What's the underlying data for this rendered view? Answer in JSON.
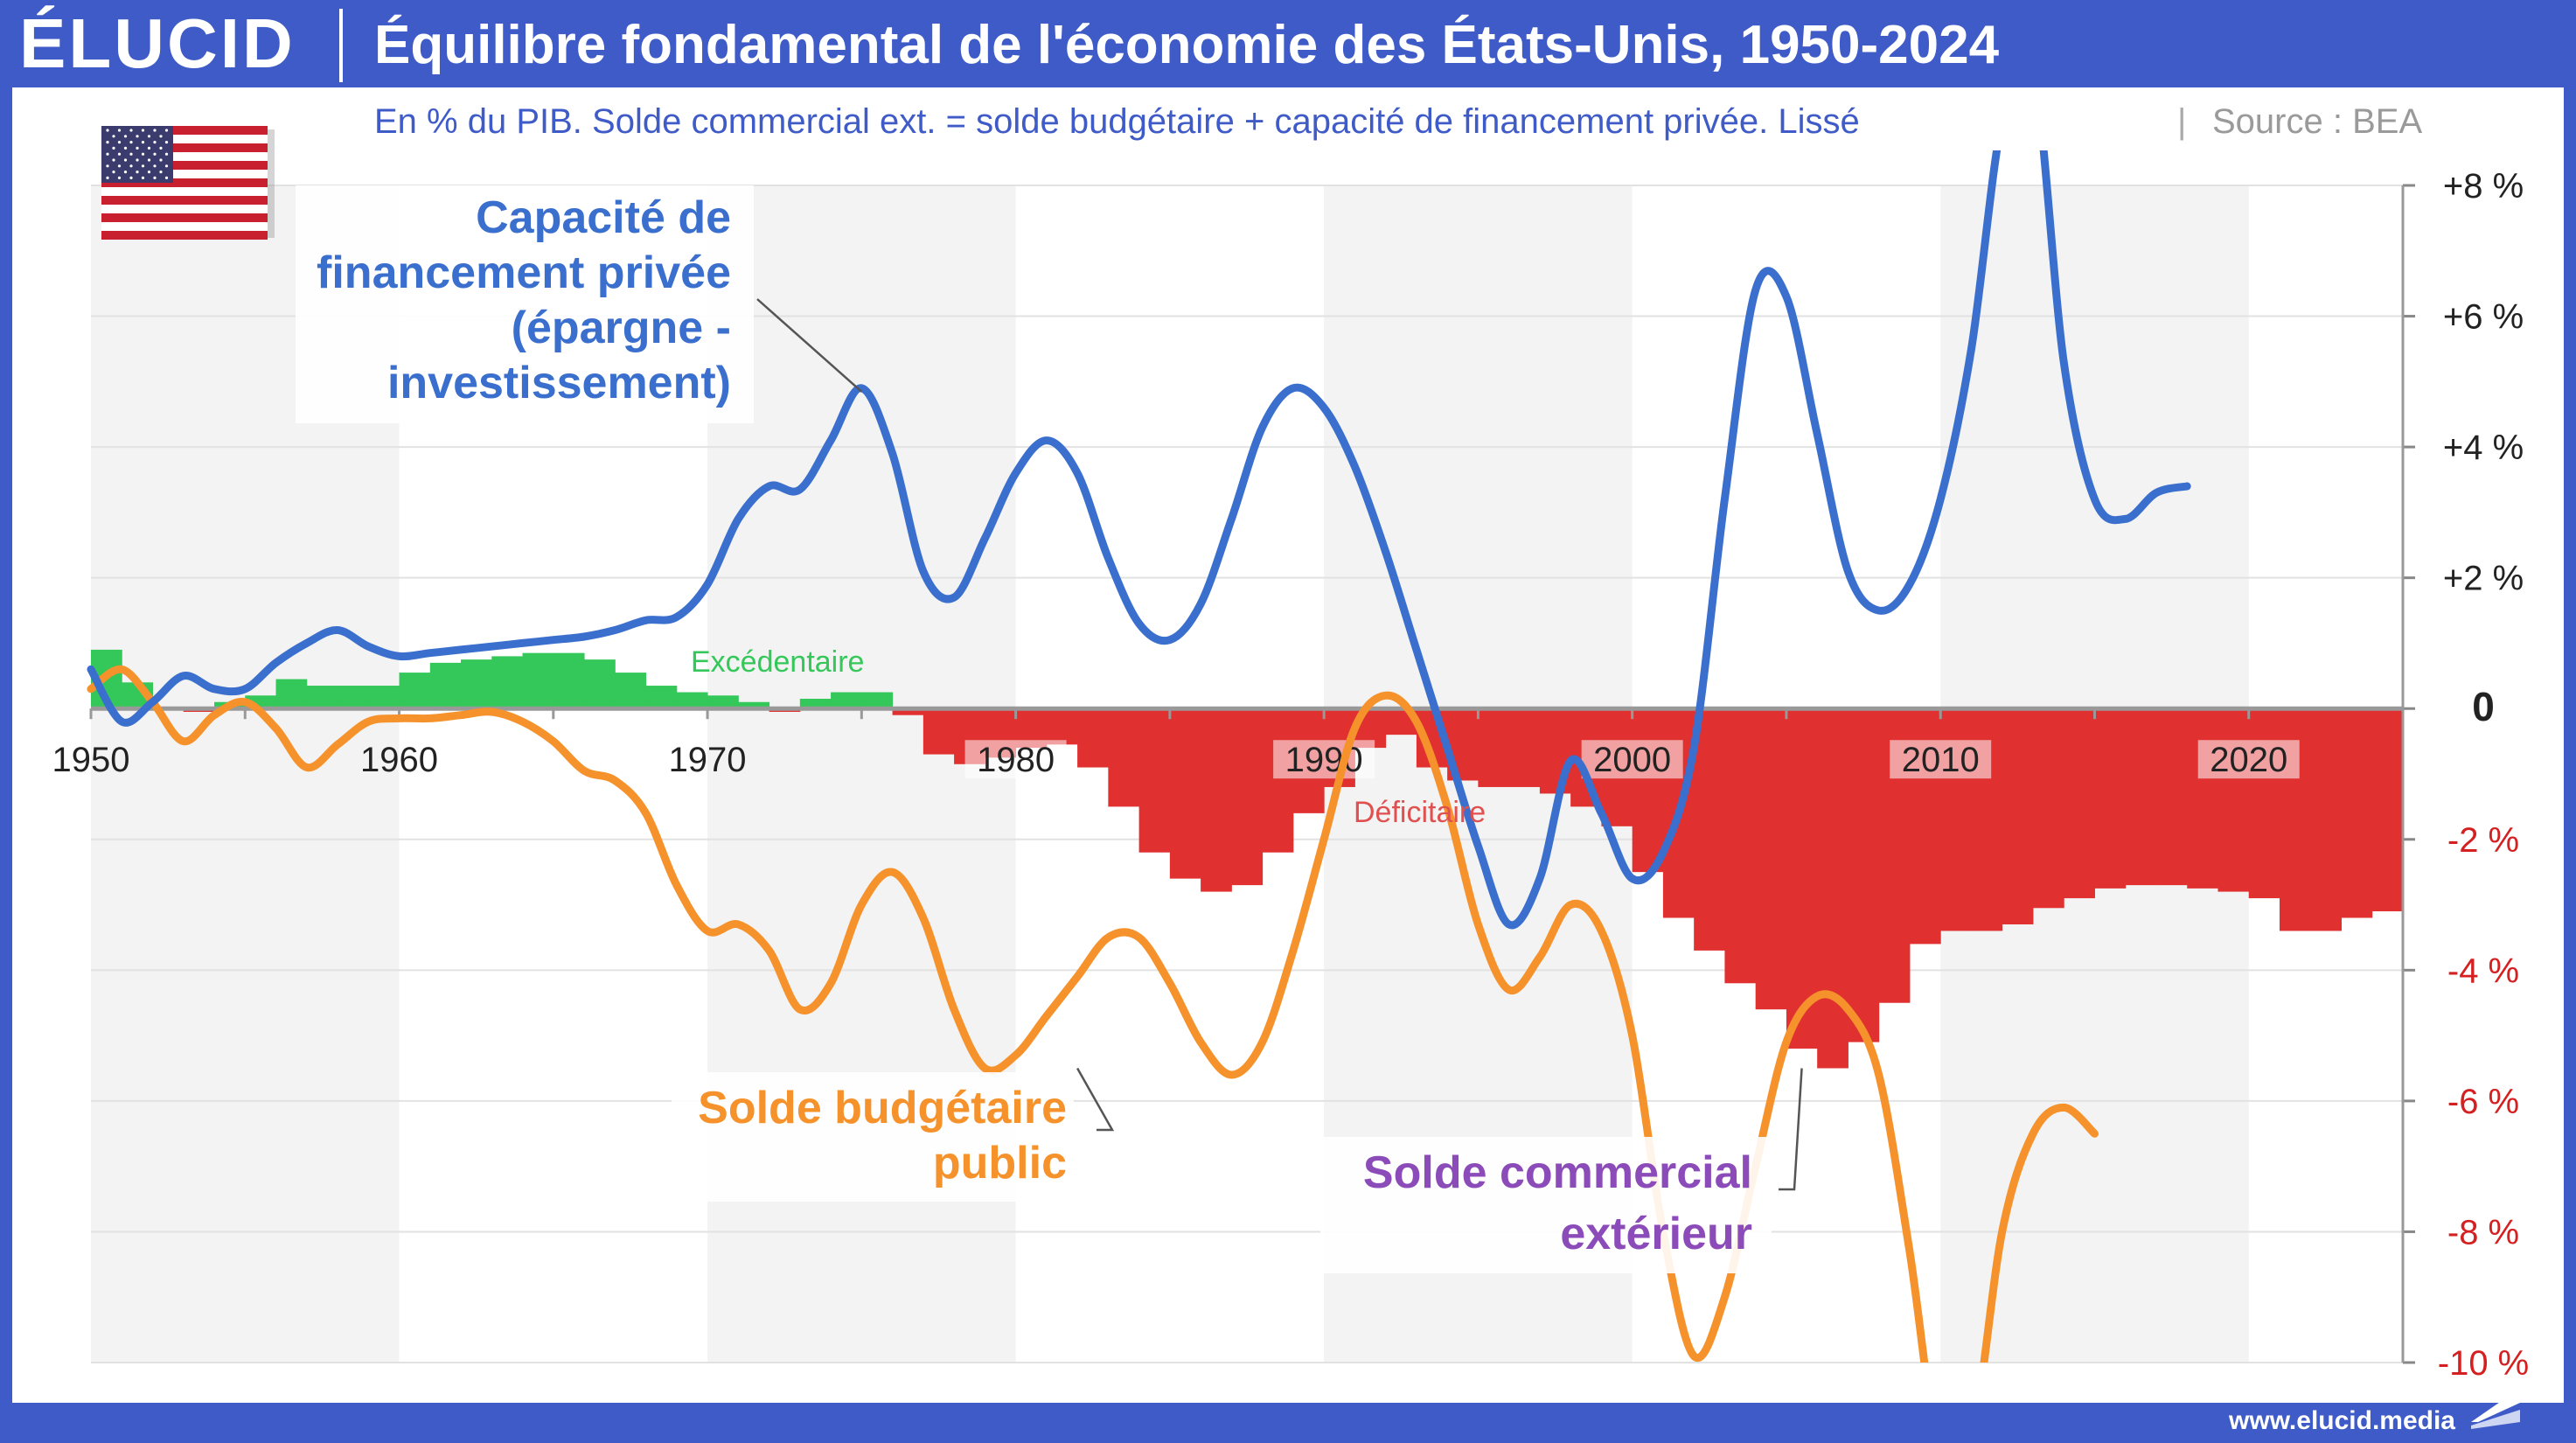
{
  "header": {
    "logo": "ÉLUCID",
    "title": "Équilibre fondamental de l'économie des États-Unis, 1950-2024",
    "subtitle": "En % du PIB. Solde commercial ext. = solde budgétaire + capacité de financement privée. Lissé",
    "source_sep": "|",
    "source": "Source : BEA"
  },
  "footer": {
    "url": "www.elucid.media"
  },
  "colors": {
    "private": "#3a6fce",
    "budget": "#f5922b",
    "trade_label": "#8b4bb8",
    "surplus": "#34c759",
    "deficit": "#e03030",
    "frame": "#3f5bc8"
  },
  "icons": {
    "flag": "us-flag-icon",
    "logo_mark": "elucid-mark-icon"
  },
  "chart_data": {
    "type": "bar+line",
    "title": "Équilibre fondamental de l'économie des États-Unis, 1950-2024",
    "ylim": [
      -10,
      8
    ],
    "y_ticks": [
      {
        "value": 8,
        "label": "+8 %"
      },
      {
        "value": 6,
        "label": "+6 %"
      },
      {
        "value": 4,
        "label": "+4 %"
      },
      {
        "value": 2,
        "label": "+2 %"
      },
      {
        "value": 0,
        "label": "0"
      },
      {
        "value": -2,
        "label": "-2 %"
      },
      {
        "value": -4,
        "label": "-4 %"
      },
      {
        "value": -6,
        "label": "-6 %"
      },
      {
        "value": -8,
        "label": "-8 %"
      },
      {
        "value": -10,
        "label": "-10 %"
      }
    ],
    "x_ticks": [
      {
        "value": 1950,
        "label": "1950"
      },
      {
        "value": 1960,
        "label": "1960"
      },
      {
        "value": 1970,
        "label": "1970"
      },
      {
        "value": 1980,
        "label": "1980"
      },
      {
        "value": 1990,
        "label": "1990"
      },
      {
        "value": 2000,
        "label": "2000"
      },
      {
        "value": 2010,
        "label": "2010"
      },
      {
        "value": 2020,
        "label": "2020"
      }
    ],
    "xlim": [
      1950,
      2025
    ],
    "years": [
      1950,
      1951,
      1952,
      1953,
      1954,
      1955,
      1956,
      1957,
      1958,
      1959,
      1960,
      1961,
      1962,
      1963,
      1964,
      1965,
      1966,
      1967,
      1968,
      1969,
      1970,
      1971,
      1972,
      1973,
      1974,
      1975,
      1976,
      1977,
      1978,
      1979,
      1980,
      1981,
      1982,
      1983,
      1984,
      1985,
      1986,
      1987,
      1988,
      1989,
      1990,
      1991,
      1992,
      1993,
      1994,
      1995,
      1996,
      1997,
      1998,
      1999,
      2000,
      2001,
      2002,
      2003,
      2004,
      2005,
      2006,
      2007,
      2008,
      2009,
      2010,
      2011,
      2012,
      2013,
      2014,
      2015,
      2016,
      2017,
      2018,
      2019,
      2020,
      2021,
      2022,
      2023,
      2024
    ],
    "series": [
      {
        "name": "Solde commercial extérieur",
        "type": "bar",
        "values": [
          0.9,
          0.4,
          0.0,
          -0.05,
          0.1,
          0.2,
          0.45,
          0.35,
          0.35,
          0.35,
          0.55,
          0.7,
          0.75,
          0.8,
          0.85,
          0.85,
          0.75,
          0.55,
          0.35,
          0.25,
          0.2,
          0.1,
          -0.05,
          0.15,
          0.25,
          0.25,
          -0.1,
          -0.7,
          -0.85,
          -0.75,
          -0.6,
          -0.55,
          -0.9,
          -1.5,
          -2.2,
          -2.6,
          -2.8,
          -2.7,
          -2.2,
          -1.6,
          -1.2,
          -0.6,
          -0.4,
          -0.9,
          -1.1,
          -1.2,
          -1.2,
          -1.3,
          -1.5,
          -1.8,
          -2.5,
          -3.2,
          -3.7,
          -4.2,
          -4.6,
          -5.2,
          -5.5,
          -5.1,
          -4.5,
          -3.6,
          -3.4,
          -3.4,
          -3.3,
          -3.05,
          -2.9,
          -2.75,
          -2.7,
          -2.7,
          -2.75,
          -2.8,
          -2.9,
          -3.4,
          -3.4,
          -3.2,
          -3.1
        ]
      },
      {
        "name": "Capacité de financement privée (épargne - investissement)",
        "type": "line",
        "points": [
          [
            1950,
            0.6
          ],
          [
            1951,
            -0.2
          ],
          [
            1952,
            0.1
          ],
          [
            1953,
            0.5
          ],
          [
            1954,
            0.3
          ],
          [
            1955,
            0.3
          ],
          [
            1956,
            0.7
          ],
          [
            1957,
            1.0
          ],
          [
            1958,
            1.2
          ],
          [
            1959,
            0.95
          ],
          [
            1960,
            0.8
          ],
          [
            1961,
            0.85
          ],
          [
            1962,
            0.9
          ],
          [
            1963,
            0.95
          ],
          [
            1964,
            1.0
          ],
          [
            1965,
            1.05
          ],
          [
            1966,
            1.1
          ],
          [
            1967,
            1.2
          ],
          [
            1968,
            1.35
          ],
          [
            1969,
            1.4
          ],
          [
            1970,
            1.9
          ],
          [
            1971,
            2.9
          ],
          [
            1972,
            3.4
          ],
          [
            1973,
            3.35
          ],
          [
            1974,
            4.1
          ],
          [
            1975,
            4.9
          ],
          [
            1976,
            3.9
          ],
          [
            1977,
            2.1
          ],
          [
            1978,
            1.7
          ],
          [
            1979,
            2.6
          ],
          [
            1980,
            3.6
          ],
          [
            1981,
            4.1
          ],
          [
            1982,
            3.6
          ],
          [
            1983,
            2.3
          ],
          [
            1984,
            1.3
          ],
          [
            1985,
            1.05
          ],
          [
            1986,
            1.6
          ],
          [
            1987,
            2.9
          ],
          [
            1988,
            4.3
          ],
          [
            1989,
            4.9
          ],
          [
            1990,
            4.6
          ],
          [
            1991,
            3.7
          ],
          [
            1992,
            2.4
          ],
          [
            1993,
            0.9
          ],
          [
            1994,
            -0.6
          ],
          [
            1995,
            -2.1
          ],
          [
            1996,
            -3.3
          ],
          [
            1997,
            -2.6
          ],
          [
            1998,
            -0.8
          ],
          [
            1999,
            -1.6
          ],
          [
            2000,
            -2.6
          ],
          [
            2001,
            -2.2
          ],
          [
            2002,
            -0.6
          ],
          [
            2003,
            3.2
          ],
          [
            2004,
            6.4
          ],
          [
            2005,
            6.3
          ],
          [
            2006,
            4.2
          ],
          [
            2007,
            2.1
          ],
          [
            2008,
            1.5
          ],
          [
            2009,
            1.9
          ],
          [
            2010,
            3.2
          ],
          [
            2011,
            5.5
          ],
          [
            2012,
            9.0
          ],
          [
            2013,
            9.8
          ],
          [
            2014,
            5.3
          ],
          [
            2015,
            3.2
          ],
          [
            2016,
            2.9
          ],
          [
            2017,
            3.3
          ],
          [
            2018,
            3.4
          ]
        ]
      },
      {
        "name": "Solde budgétaire public",
        "type": "line",
        "points": [
          [
            1950,
            0.3
          ],
          [
            1951,
            0.6
          ],
          [
            1952,
            0.1
          ],
          [
            1953,
            -0.5
          ],
          [
            1954,
            -0.1
          ],
          [
            1955,
            0.1
          ],
          [
            1956,
            -0.3
          ],
          [
            1957,
            -0.9
          ],
          [
            1958,
            -0.55
          ],
          [
            1959,
            -0.2
          ],
          [
            1960,
            -0.15
          ],
          [
            1961,
            -0.15
          ],
          [
            1962,
            -0.1
          ],
          [
            1963,
            -0.05
          ],
          [
            1964,
            -0.2
          ],
          [
            1965,
            -0.5
          ],
          [
            1966,
            -0.95
          ],
          [
            1967,
            -1.1
          ],
          [
            1968,
            -1.6
          ],
          [
            1969,
            -2.7
          ],
          [
            1970,
            -3.4
          ],
          [
            1971,
            -3.3
          ],
          [
            1972,
            -3.7
          ],
          [
            1973,
            -4.6
          ],
          [
            1974,
            -4.2
          ],
          [
            1975,
            -3.0
          ],
          [
            1976,
            -2.5
          ],
          [
            1977,
            -3.2
          ],
          [
            1978,
            -4.6
          ],
          [
            1979,
            -5.5
          ],
          [
            1980,
            -5.3
          ],
          [
            1981,
            -4.7
          ],
          [
            1982,
            -4.1
          ],
          [
            1983,
            -3.5
          ],
          [
            1984,
            -3.5
          ],
          [
            1985,
            -4.2
          ],
          [
            1986,
            -5.1
          ],
          [
            1987,
            -5.6
          ],
          [
            1988,
            -5.1
          ],
          [
            1989,
            -3.7
          ],
          [
            1990,
            -2.0
          ],
          [
            1991,
            -0.3
          ],
          [
            1992,
            0.2
          ],
          [
            1993,
            -0.2
          ],
          [
            1994,
            -1.5
          ],
          [
            1995,
            -3.3
          ],
          [
            1996,
            -4.3
          ],
          [
            1997,
            -3.8
          ],
          [
            1998,
            -3.0
          ],
          [
            1999,
            -3.4
          ],
          [
            2000,
            -5.0
          ],
          [
            2001,
            -8.0
          ],
          [
            2002,
            -9.9
          ],
          [
            2003,
            -9.0
          ],
          [
            2004,
            -7.0
          ],
          [
            2005,
            -5.1
          ],
          [
            2006,
            -4.4
          ],
          [
            2007,
            -4.6
          ],
          [
            2008,
            -5.6
          ],
          [
            2009,
            -8.3
          ],
          [
            2010,
            -11.5
          ],
          [
            2011,
            -11.2
          ],
          [
            2012,
            -8.0
          ],
          [
            2013,
            -6.5
          ],
          [
            2014,
            -6.1
          ],
          [
            2015,
            -6.5
          ]
        ]
      }
    ],
    "annotations": [
      {
        "text": "Excédentaire",
        "color": "#34c759"
      },
      {
        "text": "Déficitaire",
        "color": "#e05050"
      },
      {
        "lines": [
          "Capacité de",
          "financement privée",
          "(épargne -",
          "investissement)"
        ],
        "color": "#3a6fce"
      },
      {
        "lines": [
          "Solde budgétaire",
          "public"
        ],
        "color": "#f5922b"
      },
      {
        "lines": [
          "Solde commercial",
          "extérieur"
        ],
        "color": "#8b4bb8"
      }
    ]
  }
}
